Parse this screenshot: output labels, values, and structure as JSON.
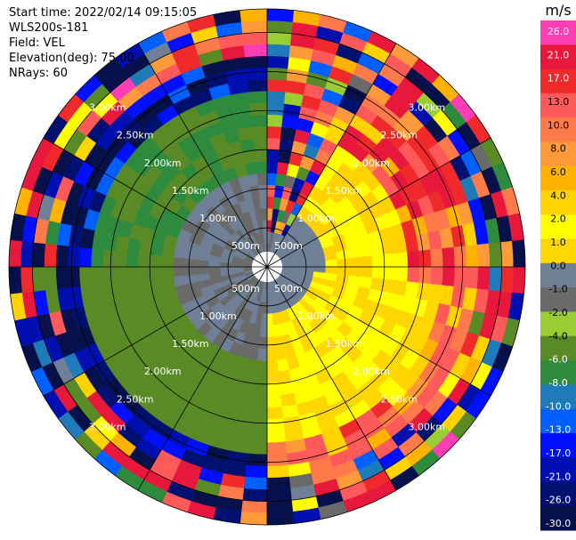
{
  "header": {
    "start_time": "Start time: 2022/02/14 09:15:05",
    "instrument": "WLS200s-181",
    "field": "Field: VEL",
    "elevation": "Elevation(deg): 75.00",
    "nrays": "NRays: 60"
  },
  "chart_data": {
    "type": "heatmap",
    "subtype": "polar-ppi",
    "field": "VEL",
    "units": "m/s",
    "range_rings_km": [
      0.5,
      1.0,
      1.5,
      2.0,
      2.5,
      3.0
    ],
    "range_ring_labels": [
      "500m",
      "1.00km",
      "1.50km",
      "2.00km",
      "2.50km",
      "3.00km"
    ],
    "max_range_km": 3.3,
    "n_rays": 60,
    "n_range_gates": 22,
    "colorbar": {
      "title": "m/s",
      "tick_labels": [
        "26.0",
        "21.0",
        "17.0",
        "13.0",
        "10.0",
        "8.0",
        "6.0",
        "4.0",
        "2.0",
        "1.0",
        "0.0",
        "-1.0",
        "-2.0",
        "-4.0",
        "-6.0",
        "-8.0",
        "-10.0",
        "-13.0",
        "-17.0",
        "-21.0",
        "-26.0",
        "-30.0"
      ],
      "bins": [
        {
          "min": 26,
          "color": "#ff3eb5"
        },
        {
          "min": 21,
          "color": "#e8173c"
        },
        {
          "min": 17,
          "color": "#f02a2a"
        },
        {
          "min": 13,
          "color": "#ff5a5a"
        },
        {
          "min": 10,
          "color": "#ff7a4a"
        },
        {
          "min": 8,
          "color": "#ff9a3a"
        },
        {
          "min": 6,
          "color": "#ffb300"
        },
        {
          "min": 4,
          "color": "#ffd200"
        },
        {
          "min": 2,
          "color": "#ffff00"
        },
        {
          "min": 1,
          "color": "#ffd700"
        },
        {
          "min": 0,
          "color": "#6e7f96"
        },
        {
          "min": -1,
          "color": "#6a6a6a"
        },
        {
          "min": -2,
          "color": "#9acd32"
        },
        {
          "min": -4,
          "color": "#5a8a26"
        },
        {
          "min": -6,
          "color": "#2e8b3e"
        },
        {
          "min": -8,
          "color": "#1e7ab8"
        },
        {
          "min": -10,
          "color": "#0060ff"
        },
        {
          "min": -13,
          "color": "#0010ff"
        },
        {
          "min": -17,
          "color": "#000fb0"
        },
        {
          "min": -21,
          "color": "#001070"
        },
        {
          "min": -26,
          "color": "#06104a"
        }
      ]
    },
    "pattern_note_for_script": "velocities derived from sectors"
  }
}
